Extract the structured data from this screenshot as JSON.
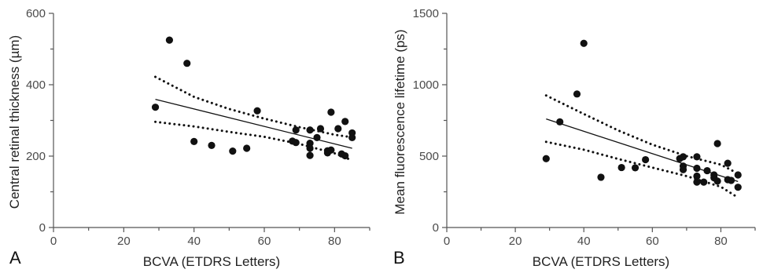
{
  "chart_data": [
    {
      "type": "scatter",
      "panel_label": "A",
      "title": "",
      "xlabel": "BCVA (ETDRS Letters)",
      "ylabel": "Central retinal thickness  (µm)",
      "xlim": [
        0,
        90
      ],
      "ylim": [
        0,
        600
      ],
      "xticks": [
        0,
        20,
        40,
        60,
        80
      ],
      "yticks": [
        0,
        200,
        400,
        600
      ],
      "grid": false,
      "points": [
        [
          29,
          337
        ],
        [
          33,
          525
        ],
        [
          38,
          460
        ],
        [
          40,
          241
        ],
        [
          45,
          230
        ],
        [
          51,
          214
        ],
        [
          55,
          222
        ],
        [
          58,
          327
        ],
        [
          68,
          242
        ],
        [
          69,
          238
        ],
        [
          69,
          273
        ],
        [
          73,
          273
        ],
        [
          73,
          236
        ],
        [
          73,
          222
        ],
        [
          73,
          202
        ],
        [
          75,
          252
        ],
        [
          76,
          277
        ],
        [
          78,
          215
        ],
        [
          78,
          209
        ],
        [
          79,
          217
        ],
        [
          79,
          323
        ],
        [
          81,
          277
        ],
        [
          82,
          206
        ],
        [
          83,
          297
        ],
        [
          83,
          201
        ],
        [
          85,
          265
        ],
        [
          85,
          252
        ]
      ],
      "fit_line": [
        [
          29,
          359
        ],
        [
          85,
          222
        ]
      ],
      "ci_lower": [
        [
          29,
          296
        ],
        [
          40,
          283
        ],
        [
          50,
          268
        ],
        [
          60,
          254
        ],
        [
          70,
          234
        ],
        [
          80,
          208
        ],
        [
          84,
          192
        ]
      ],
      "ci_upper": [
        [
          29,
          422
        ],
        [
          40,
          366
        ],
        [
          50,
          332
        ],
        [
          60,
          305
        ],
        [
          70,
          281
        ],
        [
          80,
          260
        ],
        [
          84,
          254
        ]
      ]
    },
    {
      "type": "scatter",
      "panel_label": "B",
      "title": "",
      "xlabel": "BCVA (ETDRS Letters)",
      "ylabel": "Mean fluorescence lifetime (ps)",
      "xlim": [
        0,
        90
      ],
      "ylim": [
        0,
        1500
      ],
      "xticks": [
        0,
        20,
        40,
        60,
        80
      ],
      "yticks": [
        0,
        500,
        1000,
        1500
      ],
      "grid": false,
      "points": [
        [
          29,
          482
        ],
        [
          33,
          740
        ],
        [
          38,
          935
        ],
        [
          40,
          1290
        ],
        [
          45,
          352
        ],
        [
          51,
          420
        ],
        [
          55,
          418
        ],
        [
          58,
          475
        ],
        [
          68,
          483
        ],
        [
          69,
          495
        ],
        [
          69,
          430
        ],
        [
          69,
          405
        ],
        [
          73,
          495
        ],
        [
          73,
          415
        ],
        [
          73,
          360
        ],
        [
          73,
          318
        ],
        [
          75,
          318
        ],
        [
          76,
          398
        ],
        [
          78,
          368
        ],
        [
          78,
          348
        ],
        [
          79,
          588
        ],
        [
          79,
          325
        ],
        [
          82,
          450
        ],
        [
          82,
          335
        ],
        [
          83,
          330
        ],
        [
          85,
          368
        ],
        [
          85,
          282
        ]
      ],
      "fit_line": [
        [
          29,
          760
        ],
        [
          85,
          322
        ]
      ],
      "ci_lower": [
        [
          29,
          600
        ],
        [
          40,
          545
        ],
        [
          50,
          480
        ],
        [
          60,
          420
        ],
        [
          70,
          360
        ],
        [
          80,
          285
        ],
        [
          84,
          225
        ]
      ],
      "ci_upper": [
        [
          29,
          925
        ],
        [
          40,
          795
        ],
        [
          50,
          680
        ],
        [
          60,
          580
        ],
        [
          70,
          500
        ],
        [
          80,
          440
        ],
        [
          84,
          390
        ]
      ]
    }
  ]
}
